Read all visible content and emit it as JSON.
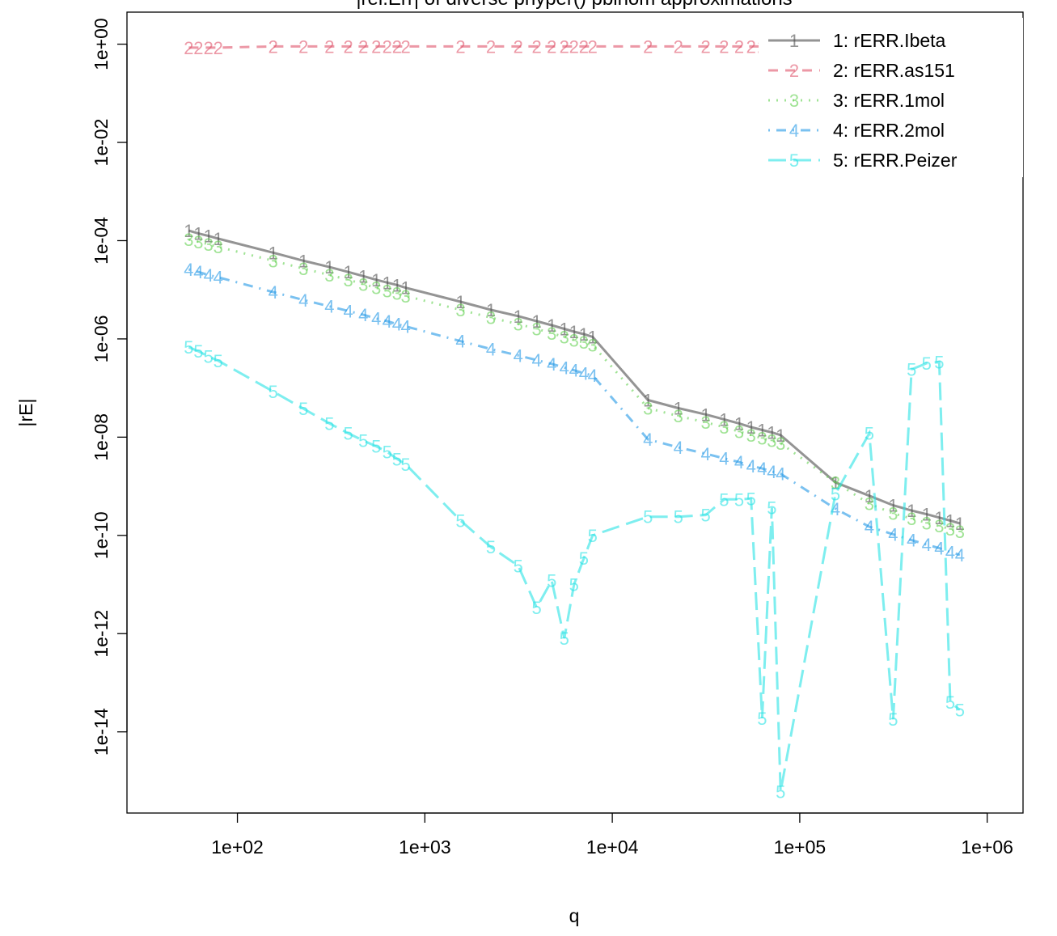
{
  "chart_data": {
    "type": "line",
    "title": "|rel.Err| of diverse phyper() pbinom  approximations",
    "xlabel": "q",
    "ylabel": "|rE|",
    "x_scale": "log10",
    "y_scale": "log10",
    "xlim": [
      40,
      1000000
    ],
    "ylim": [
      1e-15,
      1.0
    ],
    "x_ticks": [
      "1e+02",
      "1e+03",
      "1e+04",
      "1e+05",
      "1e+06"
    ],
    "y_ticks": [
      "1e+00",
      "1e-02",
      "1e-04",
      "1e-06",
      "1e-08",
      "1e-10",
      "1e-12",
      "1e-14"
    ],
    "legend_position": "top-right",
    "x": [
      55,
      62,
      70,
      79,
      155,
      225,
      310,
      390,
      470,
      550,
      630,
      710,
      790,
      1550,
      2250,
      3150,
      3950,
      4750,
      5550,
      6250,
      7050,
      7850,
      15500,
      22500,
      31500,
      39500,
      47500,
      55000,
      63000,
      71000,
      79000,
      155000,
      235000,
      315000,
      395000,
      475000,
      555000,
      635000,
      715000
    ],
    "series": [
      {
        "name": "1: rERR.Ibeta",
        "symbol": "1",
        "color": "#4d4d4d",
        "dash": "solid",
        "values": [
          0.00016,
          0.00014,
          0.000125,
          0.00011,
          5.7e-05,
          3.9e-05,
          2.9e-05,
          2.3e-05,
          1.9e-05,
          1.6e-05,
          1.4e-05,
          1.25e-05,
          1.1e-05,
          5.7e-06,
          3.9e-06,
          2.9e-06,
          2.3e-06,
          1.9e-06,
          1.6e-06,
          1.4e-06,
          1.25e-06,
          1.1e-06,
          5.7e-08,
          3.9e-08,
          2.9e-08,
          2.3e-08,
          1.9e-08,
          1.6e-08,
          1.4e-08,
          1.25e-08,
          1.1e-08,
          1.2e-09,
          6.4e-10,
          4.1e-10,
          3.2e-10,
          2.7e-10,
          2.3e-10,
          2e-10,
          1.75e-10
        ]
      },
      {
        "name": "2: rERR.as151",
        "symbol": "2",
        "color": "#df536b",
        "dash": "dashed",
        "values": [
          0.85,
          0.85,
          0.85,
          0.85,
          0.9,
          0.9,
          0.9,
          0.9,
          0.9,
          0.9,
          0.9,
          0.9,
          0.9,
          0.9,
          0.9,
          0.9,
          0.9,
          0.9,
          0.9,
          0.9,
          0.9,
          0.9,
          0.9,
          0.9,
          0.9,
          0.9,
          0.9,
          0.9,
          0.9,
          0.9,
          0.9,
          0.9,
          0.9,
          0.9,
          0.9,
          0.9,
          0.9,
          0.9,
          0.9
        ]
      },
      {
        "name": "3: rERR.1mol",
        "symbol": "3",
        "color": "#61d04f",
        "dash": "dotted",
        "values": [
          0.000105,
          9.5e-05,
          8.5e-05,
          7.5e-05,
          3.9e-05,
          2.7e-05,
          2e-05,
          1.6e-05,
          1.3e-05,
          1.1e-05,
          9.5e-06,
          8.5e-06,
          7.5e-06,
          3.9e-06,
          2.7e-06,
          2e-06,
          1.6e-06,
          1.3e-06,
          1.1e-06,
          9.5e-07,
          8.5e-07,
          7.5e-07,
          3.9e-08,
          2.7e-08,
          2e-08,
          1.6e-08,
          1.3e-08,
          1.1e-08,
          9.5e-09,
          8.5e-09,
          7.5e-09,
          1.2e-09,
          4.4e-10,
          2.8e-10,
          2.2e-10,
          1.8e-10,
          1.55e-10,
          1.35e-10,
          1.2e-10
        ]
      },
      {
        "name": "4: rERR.2mol",
        "symbol": "4",
        "color": "#2297e6",
        "dash": "dotdash",
        "values": [
          2.6e-05,
          2.3e-05,
          2e-05,
          1.8e-05,
          9e-06,
          6.2e-06,
          4.6e-06,
          3.7e-06,
          3.1e-06,
          2.6e-06,
          2.3e-06,
          2e-06,
          1.8e-06,
          9e-07,
          6.2e-07,
          4.6e-07,
          3.7e-07,
          3.1e-07,
          2.6e-07,
          2.3e-07,
          2e-07,
          1.8e-07,
          9e-09,
          6.2e-09,
          4.6e-09,
          3.7e-09,
          3.1e-09,
          2.6e-09,
          2.3e-09,
          2e-09,
          1.8e-09,
          3.5e-10,
          1.5e-10,
          1.05e-10,
          8e-11,
          6.5e-11,
          5.5e-11,
          4.6e-11,
          4e-11
        ]
      },
      {
        "name": "5: rERR.Peizer",
        "symbol": "5",
        "color": "#28e2e5",
        "dash": "longdash",
        "values": [
          6.8e-07,
          5.6e-07,
          4.4e-07,
          3.6e-07,
          8.5e-08,
          3.8e-08,
          1.9e-08,
          1.2e-08,
          8.5e-09,
          6.5e-09,
          5e-09,
          3.6e-09,
          2.8e-09,
          2e-10,
          5.8e-11,
          2.4e-11,
          3.4e-12,
          1.2e-11,
          8e-13,
          1e-11,
          3.4e-11,
          1e-10,
          2.4e-10,
          2.4e-10,
          2.6e-10,
          5.4e-10,
          5.4e-10,
          5.6e-10,
          1.9e-14,
          3.7e-10,
          6.1e-16,
          7e-10,
          1.2e-08,
          1.8e-14,
          2.4e-07,
          3.2e-07,
          3.4e-07,
          4e-14,
          2.8e-14
        ]
      }
    ]
  }
}
